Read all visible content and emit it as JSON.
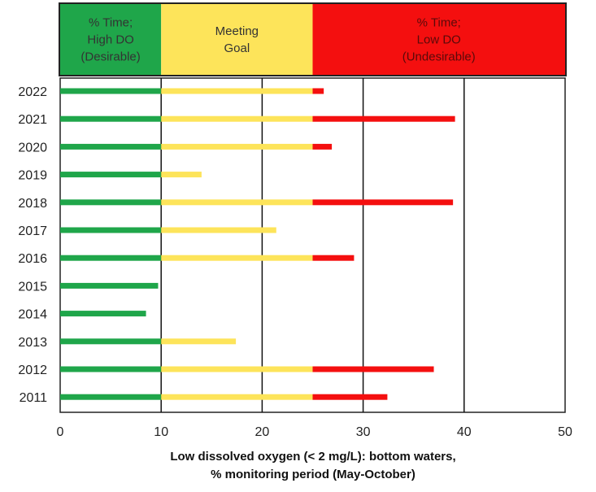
{
  "chart_data": {
    "type": "bar",
    "orientation": "horizontal",
    "categories": [
      "2022",
      "2021",
      "2020",
      "2019",
      "2018",
      "2017",
      "2016",
      "2015",
      "2014",
      "2013",
      "2012",
      "2011"
    ],
    "values": [
      26.1,
      39.1,
      26.9,
      14.0,
      38.9,
      21.4,
      29.1,
      9.7,
      8.5,
      17.4,
      37.0,
      32.4
    ],
    "xlabel_line1": "Low dissolved oxygen (< 2 mg/L): bottom waters,",
    "xlabel_line2": "% monitoring period (May-October)",
    "ylabel": "",
    "xlim": [
      0,
      50
    ],
    "xticks": [
      "0",
      "10",
      "20",
      "30",
      "40",
      "50"
    ],
    "grid": "vertical lines at 10, 20, 30, 40",
    "zones": [
      {
        "label_lines": [
          "% Time;",
          "High DO",
          "(Desirable)"
        ],
        "from": 0,
        "to": 10,
        "color": "#1fa64a"
      },
      {
        "label_lines": [
          "Meeting",
          "Goal"
        ],
        "from": 10,
        "to": 25,
        "color": "#fde45a"
      },
      {
        "label_lines": [
          "% Time;",
          "Low DO",
          "(Undesirable)"
        ],
        "from": 25,
        "to": 50,
        "color": "#f40f0f"
      }
    ]
  }
}
